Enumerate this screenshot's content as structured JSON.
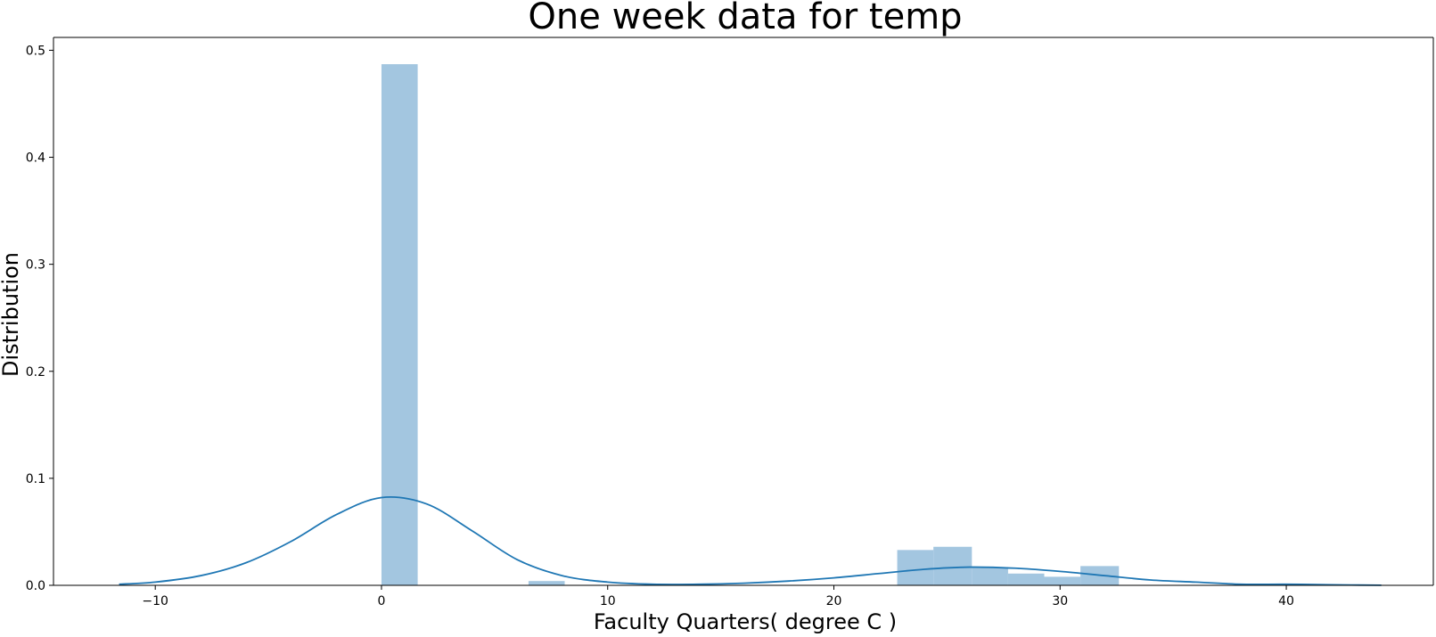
{
  "chart_data": {
    "type": "histogram",
    "title": "One week data for temp",
    "xlabel": "Faculty Quarters( degree C )",
    "ylabel": "Distribution",
    "xlim": [
      -14.5,
      46.5
    ],
    "ylim": [
      0,
      0.512
    ],
    "x_ticks": [
      -10,
      0,
      10,
      20,
      30,
      40
    ],
    "y_ticks": [
      0.0,
      0.1,
      0.2,
      0.3,
      0.4,
      0.5
    ],
    "x_tick_labels": [
      "−10",
      "0",
      "10",
      "20",
      "30",
      "40"
    ],
    "y_tick_labels": [
      "0.0",
      "0.1",
      "0.2",
      "0.3",
      "0.4",
      "0.5"
    ],
    "grid": false,
    "colors": {
      "bars": "#a3c6e0",
      "kde": "#1f77b4"
    },
    "bars": [
      {
        "x0": 0.0,
        "x1": 1.6,
        "density": 0.487
      },
      {
        "x0": 6.5,
        "x1": 8.1,
        "density": 0.004
      },
      {
        "x0": 22.8,
        "x1": 24.4,
        "density": 0.033
      },
      {
        "x0": 24.4,
        "x1": 26.1,
        "density": 0.036
      },
      {
        "x0": 26.1,
        "x1": 27.7,
        "density": 0.017
      },
      {
        "x0": 27.7,
        "x1": 29.3,
        "density": 0.011
      },
      {
        "x0": 29.3,
        "x1": 30.9,
        "density": 0.008
      },
      {
        "x0": 30.9,
        "x1": 32.6,
        "density": 0.018
      }
    ],
    "kde": {
      "x": [
        -11.6,
        -10,
        -8,
        -6,
        -4,
        -2,
        0,
        2,
        4,
        6,
        8,
        10,
        12,
        14,
        16,
        18,
        20,
        22,
        24,
        26,
        28,
        30,
        32,
        34,
        36,
        38,
        40,
        42,
        44.2
      ],
      "y": [
        0.001,
        0.003,
        0.009,
        0.021,
        0.041,
        0.066,
        0.082,
        0.076,
        0.051,
        0.024,
        0.009,
        0.003,
        0.001,
        0.001,
        0.002,
        0.004,
        0.007,
        0.011,
        0.015,
        0.017,
        0.016,
        0.013,
        0.009,
        0.005,
        0.003,
        0.001,
        0.001,
        0.0005,
        0.0001
      ]
    }
  }
}
